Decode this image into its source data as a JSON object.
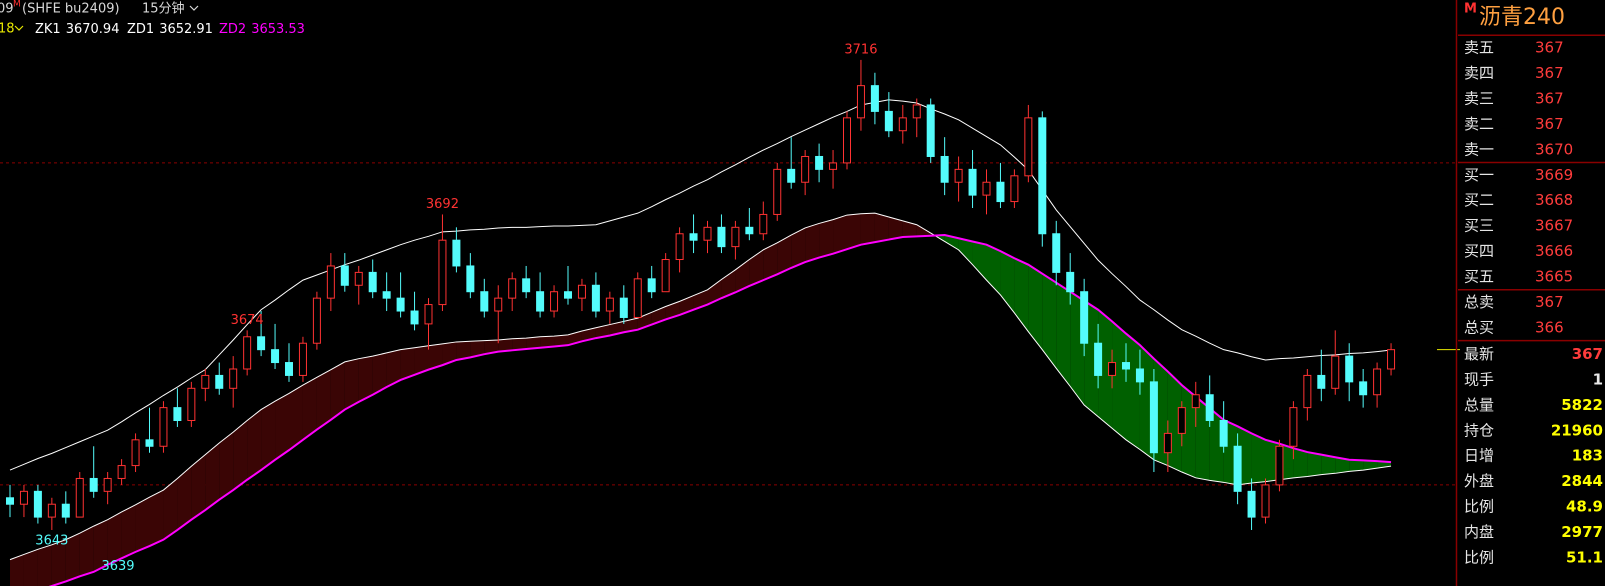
{
  "chart_data": {
    "type": "candlestick",
    "symbol_prefix": "09",
    "symbol_flag": "M",
    "symbol": "(SHFE bu2409)",
    "period": "15分钟",
    "indicator_param": "18",
    "up_color": "#ff3232",
    "down_color": "#54fcfc",
    "band_colors": {
      "above": "#3a0505",
      "below": "#006000"
    },
    "ylim": [
      3634.3,
      3725.3
    ],
    "yticks": [
      3650,
      3700
    ],
    "grid_color": "#8a0000",
    "high_labels": [
      3716,
      3692,
      3674
    ],
    "low_labels": [
      3643,
      3639
    ],
    "ohlc": [
      [
        3648,
        3650,
        3645,
        3647
      ],
      [
        3647,
        3650,
        3645,
        3649
      ],
      [
        3649,
        3650,
        3644,
        3645
      ],
      [
        3645,
        3648,
        3643,
        3647
      ],
      [
        3647,
        3649,
        3644,
        3645
      ],
      [
        3645,
        3652,
        3645,
        3651
      ],
      [
        3651,
        3656,
        3648,
        3649
      ],
      [
        3649,
        3652,
        3647,
        3651
      ],
      [
        3651,
        3654,
        3650,
        3653
      ],
      [
        3653,
        3658,
        3652,
        3657
      ],
      [
        3657,
        3662,
        3655,
        3656
      ],
      [
        3656,
        3663,
        3655,
        3662
      ],
      [
        3662,
        3665,
        3659,
        3660
      ],
      [
        3660,
        3666,
        3659,
        3665
      ],
      [
        3665,
        3668,
        3663,
        3667
      ],
      [
        3667,
        3669,
        3664,
        3665
      ],
      [
        3665,
        3670,
        3662,
        3668
      ],
      [
        3668,
        3674,
        3667,
        3673
      ],
      [
        3673,
        3677,
        3670,
        3671
      ],
      [
        3671,
        3675,
        3668,
        3669
      ],
      [
        3669,
        3672,
        3666,
        3667
      ],
      [
        3667,
        3673,
        3666,
        3672
      ],
      [
        3672,
        3680,
        3671,
        3679
      ],
      [
        3679,
        3686,
        3677,
        3684
      ],
      [
        3684,
        3686,
        3680,
        3681
      ],
      [
        3681,
        3684,
        3678,
        3683
      ],
      [
        3683,
        3685,
        3679,
        3680
      ],
      [
        3680,
        3683,
        3677,
        3679
      ],
      [
        3679,
        3683,
        3676,
        3677
      ],
      [
        3677,
        3680,
        3674,
        3675
      ],
      [
        3675,
        3679,
        3671,
        3678
      ],
      [
        3678,
        3692,
        3677,
        3688
      ],
      [
        3688,
        3690,
        3683,
        3684
      ],
      [
        3684,
        3686,
        3679,
        3680
      ],
      [
        3680,
        3682,
        3676,
        3677
      ],
      [
        3677,
        3681,
        3672,
        3679
      ],
      [
        3679,
        3683,
        3677,
        3682
      ],
      [
        3682,
        3684,
        3679,
        3680
      ],
      [
        3680,
        3683,
        3676,
        3677
      ],
      [
        3677,
        3681,
        3676,
        3680
      ],
      [
        3680,
        3684,
        3678,
        3679
      ],
      [
        3679,
        3682,
        3677,
        3681
      ],
      [
        3681,
        3683,
        3676,
        3677
      ],
      [
        3677,
        3680,
        3675,
        3679
      ],
      [
        3679,
        3681,
        3675,
        3676
      ],
      [
        3676,
        3683,
        3676,
        3682
      ],
      [
        3682,
        3684,
        3679,
        3680
      ],
      [
        3680,
        3686,
        3680,
        3685
      ],
      [
        3685,
        3690,
        3683,
        3689
      ],
      [
        3689,
        3692,
        3686,
        3688
      ],
      [
        3688,
        3691,
        3686,
        3690
      ],
      [
        3690,
        3692,
        3686,
        3687
      ],
      [
        3687,
        3691,
        3685,
        3690
      ],
      [
        3690,
        3693,
        3688,
        3689
      ],
      [
        3689,
        3694,
        3688,
        3692
      ],
      [
        3692,
        3700,
        3691,
        3699
      ],
      [
        3699,
        3704,
        3696,
        3697
      ],
      [
        3697,
        3702,
        3695,
        3701
      ],
      [
        3701,
        3703,
        3697,
        3699
      ],
      [
        3699,
        3702,
        3696,
        3700
      ],
      [
        3700,
        3708,
        3699,
        3707
      ],
      [
        3707,
        3716,
        3705,
        3712
      ],
      [
        3712,
        3714,
        3706,
        3708
      ],
      [
        3708,
        3711,
        3704,
        3705
      ],
      [
        3705,
        3709,
        3703,
        3707
      ],
      [
        3707,
        3710,
        3704,
        3709
      ],
      [
        3709,
        3710,
        3700,
        3701
      ],
      [
        3701,
        3704,
        3695,
        3697
      ],
      [
        3697,
        3701,
        3694,
        3699
      ],
      [
        3699,
        3702,
        3693,
        3695
      ],
      [
        3695,
        3699,
        3692,
        3697
      ],
      [
        3697,
        3700,
        3693,
        3694
      ],
      [
        3694,
        3699,
        3693,
        3698
      ],
      [
        3698,
        3709,
        3697,
        3707
      ],
      [
        3707,
        3708,
        3687,
        3689
      ],
      [
        3689,
        3691,
        3681,
        3683
      ],
      [
        3683,
        3686,
        3678,
        3680
      ],
      [
        3680,
        3682,
        3670,
        3672
      ],
      [
        3672,
        3675,
        3665,
        3667
      ],
      [
        3667,
        3671,
        3665,
        3669
      ],
      [
        3669,
        3672,
        3666,
        3668
      ],
      [
        3668,
        3671,
        3664,
        3666
      ],
      [
        3666,
        3668,
        3652,
        3655
      ],
      [
        3655,
        3660,
        3652,
        3658
      ],
      [
        3658,
        3663,
        3656,
        3662
      ],
      [
        3662,
        3666,
        3659,
        3664
      ],
      [
        3664,
        3667,
        3659,
        3660
      ],
      [
        3660,
        3663,
        3655,
        3656
      ],
      [
        3656,
        3658,
        3647,
        3649
      ],
      [
        3649,
        3651,
        3643,
        3645
      ],
      [
        3645,
        3651,
        3644,
        3650
      ],
      [
        3650,
        3657,
        3649,
        3656
      ],
      [
        3656,
        3663,
        3654,
        3662
      ],
      [
        3662,
        3668,
        3660,
        3667
      ],
      [
        3667,
        3671,
        3663,
        3665
      ],
      [
        3665,
        3674,
        3664,
        3670
      ],
      [
        3670,
        3672,
        3663,
        3666
      ],
      [
        3666,
        3668,
        3662,
        3664
      ],
      [
        3664,
        3669,
        3662,
        3668
      ],
      [
        3668,
        3672,
        3667,
        3671
      ]
    ],
    "series": [
      {
        "name": "ZK1",
        "color": "#ffffff",
        "values": [
          3652.3,
          3653.2,
          3654.1,
          3654.9,
          3655.8,
          3656.7,
          3657.6,
          3658.5,
          3659.8,
          3661.2,
          3662.5,
          3663.9,
          3665.2,
          3666.6,
          3667.9,
          3670.2,
          3672.5,
          3674.9,
          3677.2,
          3678.7,
          3680.3,
          3681.8,
          3682.6,
          3683.4,
          3684.2,
          3684.9,
          3685.7,
          3686.5,
          3687.3,
          3688.0,
          3688.6,
          3689.3,
          3689.4,
          3689.6,
          3689.7,
          3689.9,
          3690.0,
          3690.0,
          3690.1,
          3690.2,
          3690.2,
          3690.3,
          3690.4,
          3691.0,
          3691.6,
          3692.2,
          3693.2,
          3694.3,
          3695.3,
          3696.4,
          3697.4,
          3698.6,
          3699.7,
          3700.9,
          3702.0,
          3703.0,
          3704.1,
          3705.1,
          3706.1,
          3707.1,
          3708.0,
          3709.0,
          3709.4,
          3709.8,
          3709.6,
          3709.3,
          3708.4,
          3707.6,
          3706.7,
          3705.4,
          3704.1,
          3702.8,
          3700.9,
          3698.9,
          3695.8,
          3692.7,
          3690.1,
          3687.5,
          3684.9,
          3682.8,
          3680.8,
          3678.7,
          3677.2,
          3675.6,
          3674.1,
          3673.1,
          3672.0,
          3671.0,
          3670.5,
          3669.9,
          3669.4,
          3669.6,
          3669.7,
          3669.9,
          3670.1,
          3670.2,
          3670.4,
          3670.5,
          3670.7,
          3670.94
        ]
      },
      {
        "name": "ZD1",
        "color": "#ffffff",
        "values": [
          3638.4,
          3639.2,
          3640.0,
          3640.7,
          3641.5,
          3642.5,
          3643.6,
          3644.6,
          3645.8,
          3646.9,
          3648.1,
          3649.2,
          3651.0,
          3652.9,
          3654.7,
          3656.5,
          3658.2,
          3660.0,
          3661.7,
          3663.0,
          3664.2,
          3665.5,
          3666.7,
          3667.9,
          3669.1,
          3669.6,
          3670.0,
          3670.5,
          3671.0,
          3671.3,
          3671.6,
          3671.9,
          3672.2,
          3672.3,
          3672.4,
          3672.5,
          3672.7,
          3672.8,
          3673.0,
          3673.1,
          3673.3,
          3673.9,
          3674.4,
          3674.9,
          3675.4,
          3675.9,
          3676.8,
          3677.7,
          3678.5,
          3679.4,
          3680.3,
          3681.9,
          3683.4,
          3685.0,
          3686.5,
          3687.6,
          3688.8,
          3689.9,
          3690.6,
          3691.2,
          3691.9,
          3692.1,
          3692.2,
          3691.6,
          3691.0,
          3690.4,
          3689.1,
          3687.8,
          3686.5,
          3684.2,
          3681.8,
          3679.5,
          3676.7,
          3673.8,
          3671.0,
          3668.1,
          3665.3,
          3662.4,
          3660.6,
          3658.8,
          3657.0,
          3655.5,
          3653.9,
          3653.0,
          3652.0,
          3651.1,
          3650.7,
          3650.4,
          3650.0,
          3650.3,
          3650.5,
          3650.8,
          3651.1,
          3651.3,
          3651.6,
          3651.8,
          3652.1,
          3652.3,
          3652.6,
          3652.91
        ]
      },
      {
        "name": "ZD2",
        "color": "#ff00ff",
        "values": [
          3632.1,
          3632.8,
          3633.6,
          3634.3,
          3635.0,
          3635.8,
          3636.5,
          3637.6,
          3638.6,
          3639.6,
          3640.5,
          3641.5,
          3643.0,
          3644.6,
          3646.1,
          3647.7,
          3649.2,
          3650.8,
          3652.3,
          3653.9,
          3655.4,
          3657.0,
          3658.6,
          3660.1,
          3661.7,
          3662.9,
          3664.0,
          3665.2,
          3666.3,
          3667.1,
          3667.9,
          3668.6,
          3669.4,
          3669.8,
          3670.3,
          3670.7,
          3670.9,
          3671.1,
          3671.3,
          3671.5,
          3671.7,
          3672.3,
          3672.8,
          3673.2,
          3673.7,
          3674.1,
          3674.9,
          3675.7,
          3676.4,
          3677.2,
          3678.0,
          3679.0,
          3679.9,
          3680.9,
          3681.8,
          3682.7,
          3683.7,
          3684.6,
          3685.3,
          3685.9,
          3686.6,
          3687.3,
          3687.7,
          3688.1,
          3688.5,
          3688.6,
          3688.7,
          3688.8,
          3688.3,
          3687.8,
          3687.3,
          3686.3,
          3685.2,
          3684.2,
          3682.8,
          3681.4,
          3680.0,
          3678.6,
          3677.2,
          3675.4,
          3673.5,
          3671.7,
          3669.6,
          3667.6,
          3665.5,
          3663.7,
          3661.9,
          3660.1,
          3659.1,
          3658.0,
          3657.0,
          3656.4,
          3655.7,
          3655.1,
          3654.7,
          3654.3,
          3653.9,
          3653.8,
          3653.7,
          3653.53
        ]
      }
    ]
  },
  "quote_panel": {
    "flag": "M",
    "name": "沥青240",
    "rows": [
      [
        "卖五",
        "367"
      ],
      [
        "卖四",
        "367"
      ],
      [
        "卖三",
        "367"
      ],
      [
        "卖二",
        "367"
      ],
      [
        "卖一",
        "3670"
      ],
      [
        "买一",
        "3669"
      ],
      [
        "买二",
        "3668"
      ],
      [
        "买三",
        "3667"
      ],
      [
        "买四",
        "3666"
      ],
      [
        "买五",
        "3665"
      ],
      [
        "总卖",
        "367"
      ],
      [
        "总买",
        "366"
      ],
      [
        "最新",
        "367"
      ],
      [
        "现手",
        "1"
      ],
      [
        "总量",
        "5822"
      ],
      [
        "持仓",
        "21960"
      ],
      [
        "日增",
        "183"
      ],
      [
        "外盘",
        "2844"
      ],
      [
        "比例",
        "48.9"
      ],
      [
        "内盘",
        "2977"
      ],
      [
        "比例",
        "51.1"
      ]
    ]
  }
}
